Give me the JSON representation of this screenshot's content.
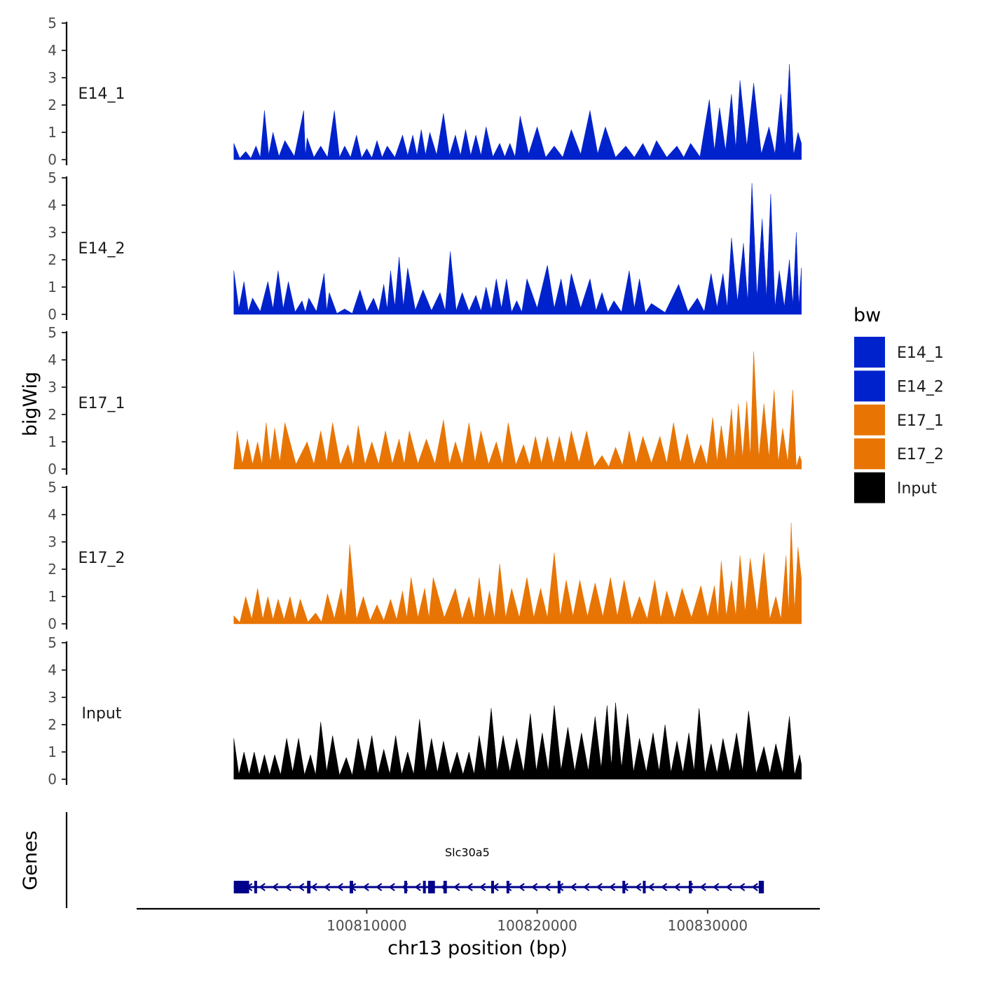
{
  "chart_data": {
    "type": "area",
    "title": "",
    "xlabel": "chr13 position (bp)",
    "ylabel": "bigWig",
    "genes_label": "Genes",
    "x_range": [
      100802200,
      100835500
    ],
    "x_view": [
      100796500,
      100836500
    ],
    "x_ticks": [
      {
        "value": 100810000,
        "label": "100810000"
      },
      {
        "value": 100820000,
        "label": "100820000"
      },
      {
        "value": 100830000,
        "label": "100830000"
      }
    ],
    "y_range": [
      0,
      5
    ],
    "y_ticks": [
      "0",
      "1",
      "2",
      "3",
      "4",
      "5"
    ],
    "legend": {
      "title": "bw",
      "entries": [
        {
          "label": "E14_1",
          "color": "#0022CC"
        },
        {
          "label": "E14_2",
          "color": "#0022CC"
        },
        {
          "label": "E17_1",
          "color": "#E87503"
        },
        {
          "label": "E17_2",
          "color": "#E87503"
        },
        {
          "label": "Input",
          "color": "#000000"
        }
      ]
    },
    "series": [
      {
        "name": "E14_1",
        "color": "#0022CC",
        "peaks": [
          [
            100802200,
            0.6
          ],
          [
            100802900,
            0.3
          ],
          [
            100803500,
            0.5
          ],
          [
            100804000,
            1.8
          ],
          [
            100804500,
            1.0
          ],
          [
            100805200,
            0.7
          ],
          [
            100806300,
            1.8
          ],
          [
            100806500,
            0.8
          ],
          [
            100807300,
            0.5
          ],
          [
            100808100,
            1.8
          ],
          [
            100808700,
            0.5
          ],
          [
            100809400,
            0.9
          ],
          [
            100810000,
            0.4
          ],
          [
            100810600,
            0.7
          ],
          [
            100811200,
            0.5
          ],
          [
            100812100,
            0.9
          ],
          [
            100812700,
            0.9
          ],
          [
            100813200,
            1.1
          ],
          [
            100813700,
            1.0
          ],
          [
            100814500,
            1.7
          ],
          [
            100815200,
            0.9
          ],
          [
            100815800,
            1.1
          ],
          [
            100816400,
            0.9
          ],
          [
            100817000,
            1.2
          ],
          [
            100817800,
            0.6
          ],
          [
            100818400,
            0.6
          ],
          [
            100819000,
            1.6
          ],
          [
            100820000,
            1.2
          ],
          [
            100821000,
            0.5
          ],
          [
            100822000,
            1.1
          ],
          [
            100823100,
            1.8
          ],
          [
            100824000,
            1.2
          ],
          [
            100825200,
            0.5
          ],
          [
            100826200,
            0.6
          ],
          [
            100827000,
            0.7
          ],
          [
            100828200,
            0.5
          ],
          [
            100829000,
            0.6
          ],
          [
            100830100,
            2.2
          ],
          [
            100830700,
            1.9
          ],
          [
            100831400,
            2.4
          ],
          [
            100831900,
            2.9
          ],
          [
            100832700,
            2.8
          ],
          [
            100833600,
            1.2
          ],
          [
            100834300,
            2.4
          ],
          [
            100834800,
            3.5
          ],
          [
            100835300,
            1.0
          ]
        ]
      },
      {
        "name": "E14_2",
        "color": "#0022CC",
        "peaks": [
          [
            100802200,
            1.6
          ],
          [
            100802800,
            1.2
          ],
          [
            100803300,
            0.6
          ],
          [
            100804200,
            1.2
          ],
          [
            100804800,
            1.6
          ],
          [
            100805400,
            1.2
          ],
          [
            100806200,
            0.5
          ],
          [
            100806600,
            0.6
          ],
          [
            100807500,
            1.5
          ],
          [
            100807800,
            0.8
          ],
          [
            100808700,
            0.2
          ],
          [
            100809600,
            0.9
          ],
          [
            100810400,
            0.6
          ],
          [
            100811000,
            1.1
          ],
          [
            100811400,
            1.6
          ],
          [
            100811900,
            2.1
          ],
          [
            100812400,
            1.7
          ],
          [
            100813300,
            0.9
          ],
          [
            100814300,
            0.8
          ],
          [
            100814900,
            2.3
          ],
          [
            100815600,
            0.8
          ],
          [
            100816400,
            0.7
          ],
          [
            100817000,
            1.0
          ],
          [
            100817600,
            1.3
          ],
          [
            100818200,
            1.3
          ],
          [
            100818800,
            0.5
          ],
          [
            100819400,
            1.3
          ],
          [
            100820600,
            1.8
          ],
          [
            100821400,
            1.3
          ],
          [
            100822000,
            1.5
          ],
          [
            100823100,
            1.3
          ],
          [
            100823800,
            0.8
          ],
          [
            100824500,
            0.5
          ],
          [
            100825400,
            1.6
          ],
          [
            100826000,
            1.3
          ],
          [
            100826700,
            0.4
          ],
          [
            100828300,
            1.1
          ],
          [
            100829400,
            0.6
          ],
          [
            100830200,
            1.5
          ],
          [
            100830900,
            1.5
          ],
          [
            100831400,
            2.8
          ],
          [
            100832100,
            2.6
          ],
          [
            100832600,
            4.8
          ],
          [
            100833200,
            3.5
          ],
          [
            100833700,
            4.4
          ],
          [
            100834200,
            1.6
          ],
          [
            100834800,
            2.0
          ],
          [
            100835200,
            3.0
          ],
          [
            100835500,
            1.7
          ]
        ]
      },
      {
        "name": "E17_1",
        "color": "#E87503",
        "peaks": [
          [
            100802400,
            1.4
          ],
          [
            100803000,
            1.1
          ],
          [
            100803600,
            1.0
          ],
          [
            100804100,
            1.7
          ],
          [
            100804600,
            1.5
          ],
          [
            100805200,
            1.7
          ],
          [
            100806500,
            1.0
          ],
          [
            100807300,
            1.4
          ],
          [
            100808000,
            1.7
          ],
          [
            100808900,
            0.9
          ],
          [
            100809500,
            1.6
          ],
          [
            100810300,
            1.0
          ],
          [
            100811100,
            1.4
          ],
          [
            100811900,
            1.1
          ],
          [
            100812500,
            1.4
          ],
          [
            100813500,
            1.1
          ],
          [
            100814500,
            1.8
          ],
          [
            100815200,
            1.0
          ],
          [
            100816000,
            1.7
          ],
          [
            100816700,
            1.4
          ],
          [
            100817600,
            1.0
          ],
          [
            100818300,
            1.7
          ],
          [
            100819200,
            0.9
          ],
          [
            100819900,
            1.2
          ],
          [
            100820600,
            1.2
          ],
          [
            100821300,
            1.2
          ],
          [
            100822000,
            1.4
          ],
          [
            100822900,
            1.4
          ],
          [
            100823800,
            0.5
          ],
          [
            100824600,
            0.8
          ],
          [
            100825400,
            1.4
          ],
          [
            100826200,
            1.2
          ],
          [
            100827200,
            1.2
          ],
          [
            100828000,
            1.7
          ],
          [
            100828800,
            1.3
          ],
          [
            100829600,
            0.9
          ],
          [
            100830300,
            1.9
          ],
          [
            100830800,
            1.6
          ],
          [
            100831400,
            2.2
          ],
          [
            100831800,
            2.4
          ],
          [
            100832300,
            2.5
          ],
          [
            100832700,
            4.3
          ],
          [
            100833300,
            2.4
          ],
          [
            100833900,
            2.9
          ],
          [
            100834400,
            1.5
          ],
          [
            100835000,
            2.9
          ],
          [
            100835400,
            0.5
          ]
        ]
      },
      {
        "name": "E17_2",
        "color": "#E87503",
        "peaks": [
          [
            100802200,
            0.3
          ],
          [
            100802900,
            1.0
          ],
          [
            100803600,
            1.3
          ],
          [
            100804200,
            1.0
          ],
          [
            100804800,
            0.9
          ],
          [
            100805500,
            1.0
          ],
          [
            100806100,
            0.9
          ],
          [
            100807000,
            0.4
          ],
          [
            100807700,
            1.1
          ],
          [
            100808500,
            1.3
          ],
          [
            100809000,
            2.9
          ],
          [
            100809800,
            1.0
          ],
          [
            100810600,
            0.7
          ],
          [
            100811400,
            0.9
          ],
          [
            100812100,
            1.2
          ],
          [
            100812600,
            1.7
          ],
          [
            100813400,
            1.3
          ],
          [
            100813900,
            1.7
          ],
          [
            100815200,
            1.3
          ],
          [
            100816000,
            1.0
          ],
          [
            100816600,
            1.7
          ],
          [
            100817200,
            1.2
          ],
          [
            100817800,
            2.2
          ],
          [
            100818500,
            1.3
          ],
          [
            100819400,
            1.7
          ],
          [
            100820200,
            1.3
          ],
          [
            100821000,
            2.6
          ],
          [
            100821700,
            1.6
          ],
          [
            100822500,
            1.6
          ],
          [
            100823400,
            1.5
          ],
          [
            100824300,
            1.7
          ],
          [
            100825100,
            1.6
          ],
          [
            100826000,
            1.0
          ],
          [
            100826900,
            1.6
          ],
          [
            100827600,
            1.2
          ],
          [
            100828500,
            1.3
          ],
          [
            100829600,
            1.4
          ],
          [
            100830400,
            1.4
          ],
          [
            100830800,
            2.3
          ],
          [
            100831400,
            1.6
          ],
          [
            100831900,
            2.5
          ],
          [
            100832500,
            2.4
          ],
          [
            100833300,
            2.6
          ],
          [
            100834000,
            1.0
          ],
          [
            100834600,
            2.5
          ],
          [
            100834900,
            3.7
          ],
          [
            100835300,
            2.8
          ]
        ]
      },
      {
        "name": "Input",
        "color": "#000000",
        "peaks": [
          [
            100802200,
            1.5
          ],
          [
            100802800,
            1.0
          ],
          [
            100803400,
            1.0
          ],
          [
            100804000,
            0.9
          ],
          [
            100804600,
            0.9
          ],
          [
            100805300,
            1.5
          ],
          [
            100806000,
            1.5
          ],
          [
            100806700,
            0.9
          ],
          [
            100807300,
            2.1
          ],
          [
            100808000,
            1.6
          ],
          [
            100808800,
            0.8
          ],
          [
            100809500,
            1.5
          ],
          [
            100810300,
            1.6
          ],
          [
            100811000,
            1.1
          ],
          [
            100811700,
            1.6
          ],
          [
            100812400,
            1.0
          ],
          [
            100813100,
            2.2
          ],
          [
            100813800,
            1.5
          ],
          [
            100814500,
            1.4
          ],
          [
            100815300,
            1.0
          ],
          [
            100816000,
            1.0
          ],
          [
            100816600,
            1.6
          ],
          [
            100817300,
            2.6
          ],
          [
            100818000,
            1.6
          ],
          [
            100818800,
            1.5
          ],
          [
            100819600,
            2.4
          ],
          [
            100820300,
            1.7
          ],
          [
            100821000,
            2.7
          ],
          [
            100821800,
            1.9
          ],
          [
            100822600,
            1.7
          ],
          [
            100823400,
            2.3
          ],
          [
            100824100,
            2.7
          ],
          [
            100824600,
            2.8
          ],
          [
            100825300,
            2.4
          ],
          [
            100826000,
            1.5
          ],
          [
            100826800,
            1.7
          ],
          [
            100827500,
            2.0
          ],
          [
            100828200,
            1.4
          ],
          [
            100828900,
            1.7
          ],
          [
            100829500,
            2.6
          ],
          [
            100830200,
            1.3
          ],
          [
            100830900,
            1.5
          ],
          [
            100831700,
            1.7
          ],
          [
            100832400,
            2.5
          ],
          [
            100833300,
            1.2
          ],
          [
            100834000,
            1.3
          ],
          [
            100834800,
            2.3
          ],
          [
            100835400,
            0.9
          ]
        ]
      }
    ],
    "gene": {
      "name": "Slc30a5",
      "color": "#00008B",
      "start": 100802200,
      "end": 100833200,
      "strand": "-",
      "exons": [
        [
          100802200,
          100803100
        ],
        [
          100803400,
          100803500
        ],
        [
          100806500,
          100806700
        ],
        [
          100809000,
          100809200
        ],
        [
          100812200,
          100812300
        ],
        [
          100813300,
          100813400
        ],
        [
          100813600,
          100814000
        ],
        [
          100814500,
          100814700
        ],
        [
          100817300,
          100817400
        ],
        [
          100818200,
          100818300
        ],
        [
          100821200,
          100821300
        ],
        [
          100825000,
          100825100
        ],
        [
          100826200,
          100826300
        ],
        [
          100828900,
          100829000
        ],
        [
          100833000,
          100833300
        ]
      ]
    }
  }
}
